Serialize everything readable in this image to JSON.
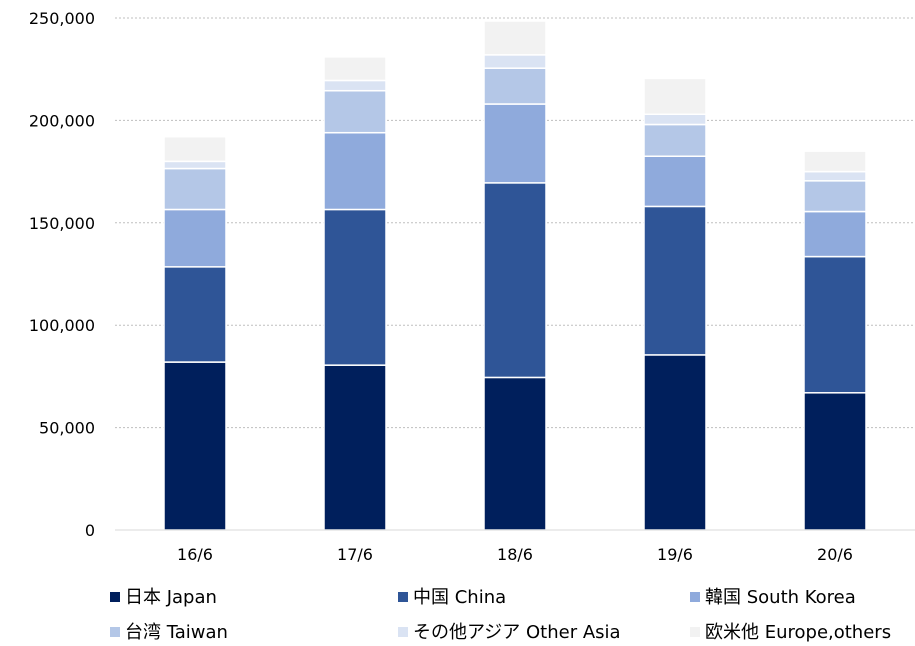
{
  "chart_data": {
    "type": "bar",
    "stacked": true,
    "categories": [
      "16/6",
      "17/6",
      "18/6",
      "19/6",
      "20/6"
    ],
    "series": [
      {
        "name": "日本 Japan",
        "color": "#001f5c",
        "values": [
          82000,
          80500,
          74500,
          85500,
          67000
        ]
      },
      {
        "name": "中国 China",
        "color": "#2f5597",
        "values": [
          46500,
          76000,
          95000,
          72500,
          66500
        ]
      },
      {
        "name": "韓国 South Korea",
        "color": "#8faadc",
        "values": [
          28000,
          37500,
          38500,
          24500,
          22000
        ]
      },
      {
        "name": "台湾 Taiwan",
        "color": "#b4c7e7",
        "values": [
          20000,
          20500,
          17500,
          15500,
          15000
        ]
      },
      {
        "name": "その他アジア Other Asia",
        "color": "#dae3f3",
        "values": [
          3500,
          5000,
          6500,
          5000,
          4500
        ]
      },
      {
        "name": "欧米他 Europe,others",
        "color": "#f2f2f2",
        "values": [
          12000,
          11500,
          16500,
          17500,
          10000
        ]
      }
    ],
    "y_ticks": [
      "0",
      "50,000",
      "100,000",
      "150,000",
      "200,000",
      "250,000"
    ],
    "ylim": [
      0,
      250000
    ],
    "grid": true,
    "legend_position": "bottom",
    "gridline_color": "#bfbfbf",
    "axis_color": "#d9d9d9"
  }
}
